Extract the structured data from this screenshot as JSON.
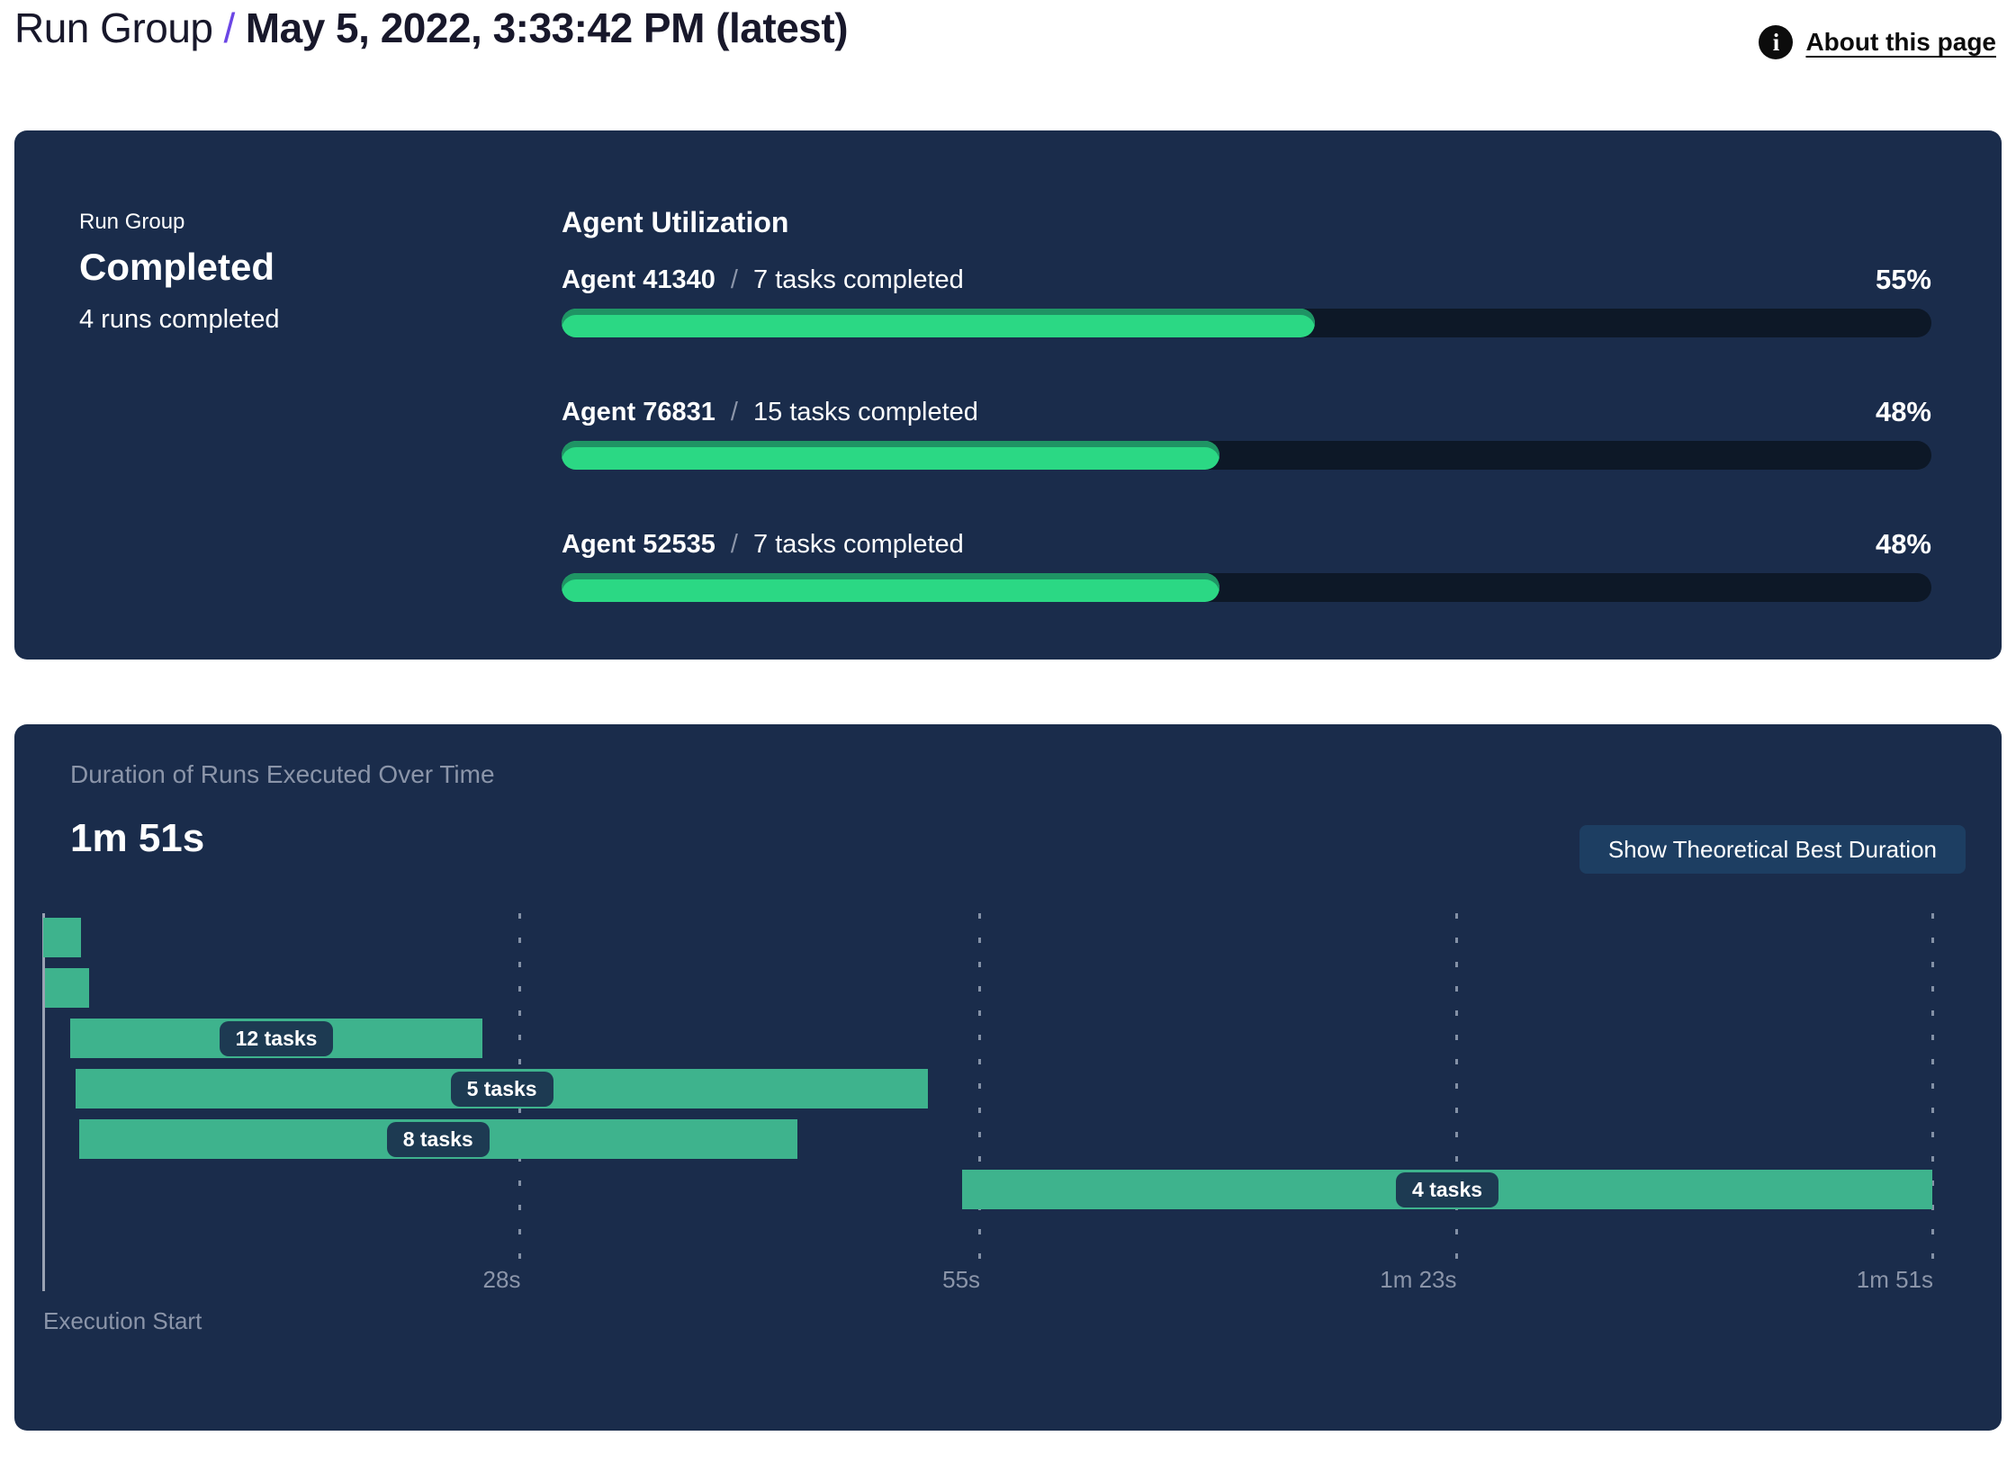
{
  "header": {
    "breadcrumb_root": "Run Group",
    "separator": "/",
    "title": "May 5, 2022, 3:33:42 PM (latest)",
    "about_link": "About this page",
    "accent_color": "#6b46e5"
  },
  "summary": {
    "label": "Run Group",
    "status": "Completed",
    "detail": "4 runs completed"
  },
  "utilization": {
    "title": "Agent Utilization",
    "separator": "/",
    "agents": [
      {
        "name": "Agent 41340",
        "tasks": "7 tasks completed",
        "percent": 55,
        "percent_label": "55%"
      },
      {
        "name": "Agent 76831",
        "tasks": "15 tasks completed",
        "percent": 48,
        "percent_label": "48%"
      },
      {
        "name": "Agent 52535",
        "tasks": "7 tasks completed",
        "percent": 48,
        "percent_label": "48%"
      }
    ],
    "bar_color": "#2bd884",
    "bar_edge_color": "#1f9464",
    "track_color": "#0d1827"
  },
  "duration_panel": {
    "title": "Duration of Runs Executed Over Time",
    "total_duration": "1m 51s",
    "button_label": "Show Theoretical Best Duration",
    "axis_label": "Execution Start"
  },
  "chart_data": {
    "type": "gantt",
    "title": "Duration of Runs Executed Over Time",
    "total_duration_label": "1m 51s",
    "axis_range_s": [
      0,
      111
    ],
    "x_ticks": [
      {
        "label": "28s",
        "t": 28
      },
      {
        "label": "55s",
        "t": 55
      },
      {
        "label": "1m 23s",
        "t": 83
      },
      {
        "label": "1m 51s",
        "t": 111
      }
    ],
    "runs": [
      {
        "label": "",
        "start_s": 0.0,
        "end_s": 2.2
      },
      {
        "label": "",
        "start_s": 0.1,
        "end_s": 2.7
      },
      {
        "label": "12 tasks",
        "start_s": 1.6,
        "end_s": 25.8
      },
      {
        "label": "5 tasks",
        "start_s": 1.9,
        "end_s": 52.0
      },
      {
        "label": "8 tasks",
        "start_s": 2.1,
        "end_s": 44.3
      },
      {
        "label": "4 tasks",
        "start_s": 54.0,
        "end_s": 111.0
      }
    ],
    "bar_color": "#3eb38d",
    "chip_color": "#1d3a52",
    "grid": "dashed-vertical",
    "legend": "none"
  },
  "colors": {
    "panel_bg": "#1a2c4b",
    "page_bg": "#ffffff",
    "muted_text": "#8b95a9",
    "button_bg": "#1d3e62",
    "axis_line": "#99a2b3"
  }
}
